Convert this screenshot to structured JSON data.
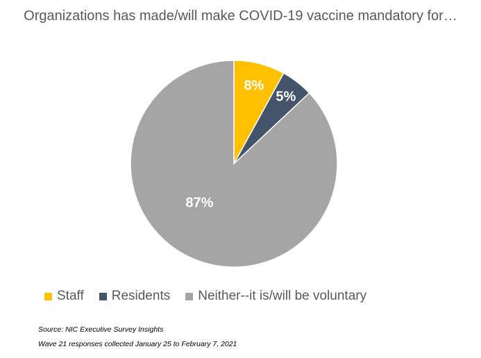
{
  "chart_data": {
    "type": "pie",
    "title": "Organizations has made/will make COVID-19 vaccine mandatory for…",
    "categories": [
      "Staff",
      "Residents",
      "Neither--it is/will be voluntary"
    ],
    "values": [
      8,
      5,
      87
    ],
    "data_labels": [
      "8%",
      "5%",
      "87%"
    ],
    "colors": [
      "#FFC000",
      "#44546A",
      "#A5A5A5"
    ],
    "legend_position": "bottom"
  },
  "footer": {
    "source": "Source: NIC Executive Survey Insights",
    "note": "Wave 21 responses collected  January 25 to February 7, 2021"
  }
}
